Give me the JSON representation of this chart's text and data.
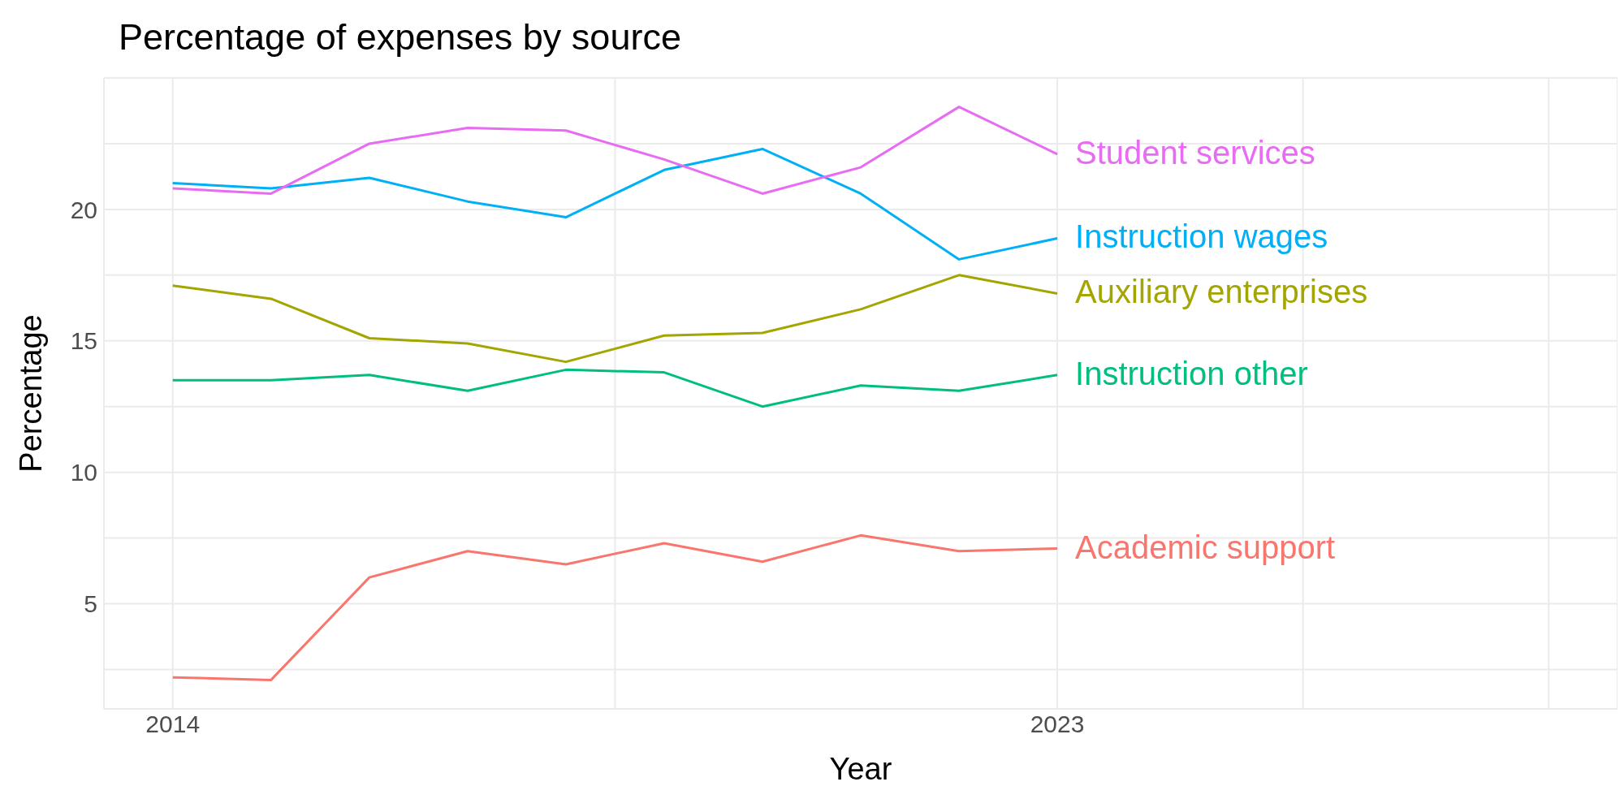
{
  "chart_data": {
    "type": "line",
    "title": "Percentage of expenses by source",
    "xlabel": "Year",
    "ylabel": "Percentage",
    "x": [
      2014,
      2015,
      2016,
      2017,
      2018,
      2019,
      2020,
      2021,
      2022,
      2023
    ],
    "series": [
      {
        "name": "Academic support",
        "color": "#f8766d",
        "values": [
          2.2,
          2.1,
          6.0,
          7.0,
          6.5,
          7.3,
          6.6,
          7.6,
          7.0,
          7.1
        ]
      },
      {
        "name": "Auxiliary enterprises",
        "color": "#a3a500",
        "values": [
          17.1,
          16.6,
          15.1,
          14.9,
          14.2,
          15.2,
          15.3,
          16.2,
          17.5,
          16.8
        ]
      },
      {
        "name": "Instruction other",
        "color": "#00bf7d",
        "values": [
          13.5,
          13.5,
          13.7,
          13.1,
          13.9,
          13.8,
          12.5,
          13.3,
          13.1,
          13.7
        ]
      },
      {
        "name": "Instruction wages",
        "color": "#00b0f6",
        "values": [
          21.0,
          20.8,
          21.2,
          20.3,
          19.7,
          21.5,
          22.3,
          20.6,
          18.1,
          18.9
        ]
      },
      {
        "name": "Student services",
        "color": "#e76bf3",
        "values": [
          20.8,
          20.6,
          22.5,
          23.1,
          23.0,
          21.9,
          20.6,
          21.6,
          23.9,
          22.1
        ]
      }
    ],
    "xlim": [
      2013.3,
      2028.7
    ],
    "xticks": [
      2014,
      {
        "value": 2018.5,
        "label": null
      },
      2023,
      {
        "value": 2025.5,
        "label": null
      },
      {
        "value": 2028,
        "label": null
      }
    ],
    "ylim": [
      1,
      25
    ],
    "yticks": [
      {
        "value": 2.5,
        "label": null
      },
      5,
      {
        "value": 7.5,
        "label": null
      },
      10,
      {
        "value": 12.5,
        "label": null
      },
      15,
      {
        "value": 17.5,
        "label": null
      },
      20,
      {
        "value": 22.5,
        "label": null
      }
    ],
    "grid": true,
    "marker": "none",
    "line_style": "solid"
  }
}
